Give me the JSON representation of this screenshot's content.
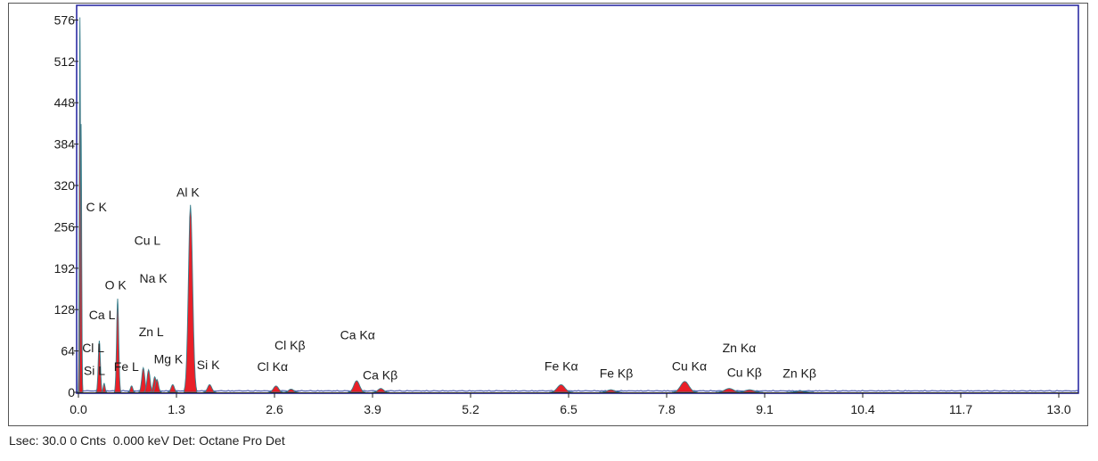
{
  "status_line": "Lsec: 30.0 0 Cnts  0.000 keV Det: Octane Pro Det",
  "colors": {
    "spectrum_fill": "#e8141c",
    "spectrum_outline": "#3b7f8c",
    "background_trace": "#2a3b9e",
    "inner_frame": "#1f1f9e",
    "outer_frame": "#555555",
    "axis": "#222222"
  },
  "chart_data": {
    "type": "area",
    "title": "",
    "xlabel": "",
    "ylabel": "",
    "xlim": [
      0,
      13.26
    ],
    "ylim": [
      0,
      600
    ],
    "grid": false,
    "legend": "none",
    "xticks": [
      "0.0",
      "1.3",
      "2.6",
      "3.9",
      "5.2",
      "6.5",
      "7.8",
      "9.1",
      "10.4",
      "11.7",
      "13.0"
    ],
    "xtick_values": [
      0.0,
      1.3,
      2.6,
      3.9,
      5.2,
      6.5,
      7.8,
      9.1,
      10.4,
      11.7,
      13.0
    ],
    "yticks": [
      "0",
      "64",
      "128",
      "192",
      "256",
      "320",
      "384",
      "448",
      "512",
      "576"
    ],
    "ytick_values": [
      0,
      64,
      128,
      192,
      256,
      320,
      384,
      448,
      512,
      576
    ],
    "background_counts": 3,
    "series": [
      {
        "peaks": [
          {
            "x": 0.02,
            "height": 580,
            "width": 0.008
          },
          {
            "x": 0.035,
            "height": 415,
            "width": 0.008
          },
          {
            "x": 0.277,
            "height": 80,
            "width": 0.014
          },
          {
            "x": 0.341,
            "height": 14,
            "width": 0.012
          },
          {
            "x": 0.52,
            "height": 145,
            "width": 0.014
          },
          {
            "x": 0.705,
            "height": 10,
            "width": 0.016
          },
          {
            "x": 0.86,
            "height": 38,
            "width": 0.02
          },
          {
            "x": 0.93,
            "height": 35,
            "width": 0.02
          },
          {
            "x": 1.012,
            "height": 24,
            "width": 0.02
          },
          {
            "x": 1.041,
            "height": 20,
            "width": 0.02
          },
          {
            "x": 1.25,
            "height": 12,
            "width": 0.022
          },
          {
            "x": 1.486,
            "height": 290,
            "width": 0.028
          },
          {
            "x": 1.74,
            "height": 12,
            "width": 0.028
          },
          {
            "x": 2.62,
            "height": 10,
            "width": 0.034
          },
          {
            "x": 2.82,
            "height": 5,
            "width": 0.034
          },
          {
            "x": 3.69,
            "height": 18,
            "width": 0.038
          },
          {
            "x": 4.01,
            "height": 6,
            "width": 0.038
          },
          {
            "x": 6.4,
            "height": 12,
            "width": 0.05
          },
          {
            "x": 7.06,
            "height": 4,
            "width": 0.05
          },
          {
            "x": 8.04,
            "height": 17,
            "width": 0.055
          },
          {
            "x": 8.63,
            "height": 6,
            "width": 0.06
          },
          {
            "x": 8.9,
            "height": 4,
            "width": 0.06
          },
          {
            "x": 9.57,
            "height": 2,
            "width": 0.06
          }
        ]
      }
    ],
    "annotations": [
      {
        "text": "C  K",
        "x": 0.1,
        "y": 280
      },
      {
        "text": "Al K",
        "x": 1.3,
        "y": 303
      },
      {
        "text": "Cu L",
        "x": 0.74,
        "y": 228
      },
      {
        "text": "Na K",
        "x": 0.81,
        "y": 170
      },
      {
        "text": "O  K",
        "x": 0.35,
        "y": 159
      },
      {
        "text": "Ca L",
        "x": 0.14,
        "y": 113
      },
      {
        "text": "Zn L",
        "x": 0.8,
        "y": 87
      },
      {
        "text": "Cl L",
        "x": 0.05,
        "y": 62
      },
      {
        "text": "Mg K",
        "x": 1.0,
        "y": 45
      },
      {
        "text": "Fe L",
        "x": 0.47,
        "y": 33
      },
      {
        "text": "Si L",
        "x": 0.07,
        "y": 27
      },
      {
        "text": "Si K",
        "x": 1.57,
        "y": 36
      },
      {
        "text": "Cl Kα",
        "x": 2.37,
        "y": 33
      },
      {
        "text": "Cl Kβ",
        "x": 2.6,
        "y": 66
      },
      {
        "text": "Ca Kα",
        "x": 3.47,
        "y": 82
      },
      {
        "text": "Ca Kβ",
        "x": 3.77,
        "y": 20
      },
      {
        "text": "Fe Kα",
        "x": 6.18,
        "y": 34
      },
      {
        "text": "Fe Kβ",
        "x": 6.91,
        "y": 23
      },
      {
        "text": "Cu Kα",
        "x": 7.87,
        "y": 34
      },
      {
        "text": "Zn Kα",
        "x": 8.54,
        "y": 62
      },
      {
        "text": "Cu Kβ",
        "x": 8.6,
        "y": 24
      },
      {
        "text": "Zn Kβ",
        "x": 9.34,
        "y": 23
      }
    ]
  }
}
